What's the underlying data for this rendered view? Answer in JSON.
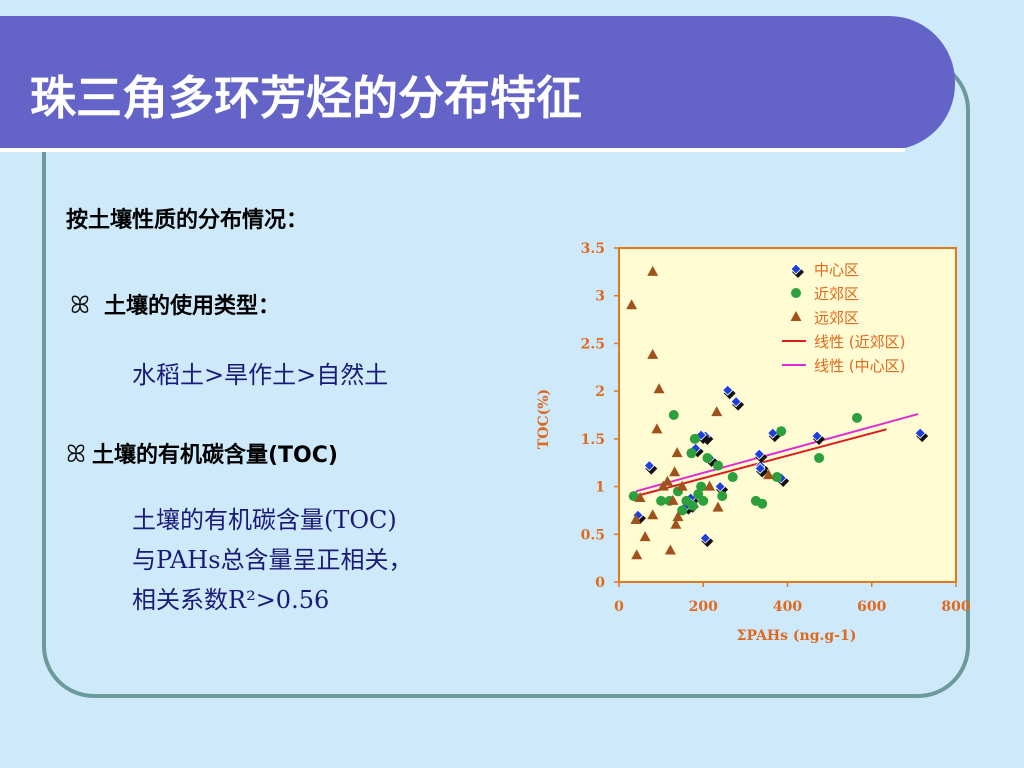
{
  "title": "珠三角多环芳烃的分布特征",
  "heading": "按土壤性质的分布情况：",
  "bullets": [
    {
      "symbol": "ꕤ",
      "label": "土壤的使用类型：",
      "detail": "水稻土>旱作土>自然土"
    },
    {
      "symbol": "ꕤ",
      "label": "土壤的有机碳含量(TOC)",
      "detail_lines": [
        "土壤的有机碳含量(TOC)",
        "与PAHs总含量呈正相关，",
        "相关系数R²>0.56"
      ]
    }
  ],
  "colors": {
    "title_bg": "#6464c8",
    "frame": "#6b9a9d",
    "background": "#cde9fa",
    "axis_text": "#e0691e",
    "chart_border": "#e07820"
  },
  "chart_data": {
    "type": "scatter",
    "xlabel": "ΣPAHs (ng.g-1)",
    "ylabel": "TOC(%)",
    "xlim": [
      0,
      800
    ],
    "ylim": [
      0,
      3.5
    ],
    "xticks": [
      "0",
      "200",
      "400",
      "600",
      "800"
    ],
    "yticks": [
      "0",
      "0.5",
      "1",
      "1.5",
      "2",
      "2.5",
      "3",
      "3.5"
    ],
    "grid": false,
    "legend_position": "top-right",
    "series": [
      {
        "name": "中心区",
        "marker": "diamond",
        "color": "#1f3fd6",
        "points": [
          [
            72,
            1.22
          ],
          [
            45,
            0.7
          ],
          [
            205,
            1.53
          ],
          [
            258,
            2.01
          ],
          [
            278,
            1.89
          ],
          [
            215,
            1.3
          ],
          [
            240,
            1.0
          ],
          [
            170,
            0.88
          ],
          [
            170,
            0.82
          ],
          [
            160,
            0.8
          ],
          [
            365,
            1.56
          ],
          [
            385,
            1.09
          ],
          [
            336,
            1.22
          ],
          [
            333,
            1.34
          ],
          [
            335,
            1.19
          ],
          [
            470,
            1.53
          ],
          [
            715,
            1.56
          ],
          [
            205,
            0.46
          ],
          [
            195,
            1.54
          ],
          [
            182,
            1.4
          ]
        ]
      },
      {
        "name": "近郊区",
        "marker": "circle",
        "color": "#2ca03c",
        "points": [
          [
            35,
            0.9
          ],
          [
            100,
            0.85
          ],
          [
            120,
            0.85
          ],
          [
            130,
            1.75
          ],
          [
            140,
            0.95
          ],
          [
            150,
            0.75
          ],
          [
            160,
            0.85
          ],
          [
            172,
            1.35
          ],
          [
            175,
            0.8
          ],
          [
            180,
            1.5
          ],
          [
            188,
            0.92
          ],
          [
            195,
            1.0
          ],
          [
            200,
            0.85
          ],
          [
            210,
            1.3
          ],
          [
            235,
            1.22
          ],
          [
            245,
            0.9
          ],
          [
            270,
            1.1
          ],
          [
            325,
            0.85
          ],
          [
            340,
            0.82
          ],
          [
            375,
            1.1
          ],
          [
            385,
            1.58
          ],
          [
            475,
            1.3
          ],
          [
            565,
            1.72
          ]
        ]
      },
      {
        "name": "远郊区",
        "marker": "triangle",
        "color": "#a0521d",
        "points": [
          [
            30,
            2.9
          ],
          [
            80,
            3.25
          ],
          [
            80,
            2.38
          ],
          [
            95,
            2.02
          ],
          [
            90,
            1.6
          ],
          [
            40,
            0.65
          ],
          [
            42,
            0.28
          ],
          [
            50,
            0.88
          ],
          [
            62,
            0.47
          ],
          [
            80,
            0.7
          ],
          [
            105,
            1.0
          ],
          [
            115,
            1.05
          ],
          [
            122,
            0.33
          ],
          [
            128,
            0.85
          ],
          [
            132,
            1.15
          ],
          [
            135,
            0.6
          ],
          [
            140,
            0.68
          ],
          [
            150,
            1.0
          ],
          [
            138,
            1.35
          ],
          [
            232,
            1.78
          ],
          [
            215,
            1.0
          ],
          [
            355,
            1.12
          ],
          [
            235,
            0.78
          ]
        ]
      }
    ],
    "trendlines": [
      {
        "name": "线性 (近郊区)",
        "color": "#d81e1e",
        "x": [
          40,
          635
        ],
        "y": [
          0.9,
          1.6
        ]
      },
      {
        "name": "线性 (中心区)",
        "color": "#e02bd0",
        "x": [
          40,
          710
        ],
        "y": [
          0.95,
          1.76
        ]
      }
    ]
  }
}
